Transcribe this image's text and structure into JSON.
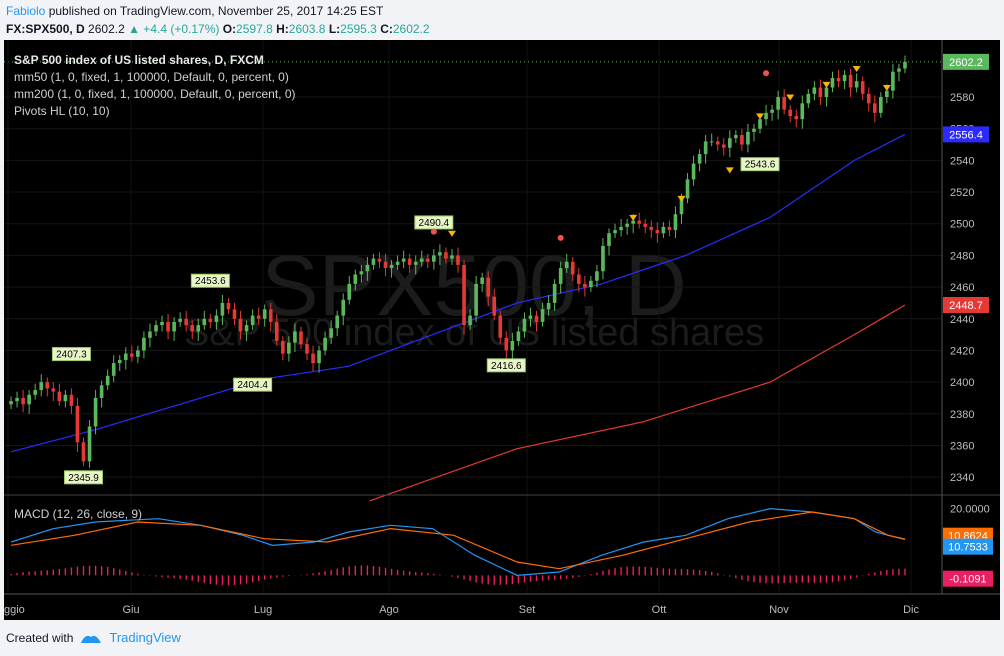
{
  "header": {
    "author": "Fabiolo",
    "published_text": "published on TradingView.com, November 25, 2017 14:25 EST",
    "symbol": "FX:SPX500, D",
    "last": "2602.2",
    "change": "▲ +4.4 (+0.17%)",
    "o_label": "O:",
    "o": "2597.8",
    "h_label": "H:",
    "h": "2603.8",
    "l_label": "L:",
    "l": "2595.3",
    "c_label": "C:",
    "c": "2602.2"
  },
  "legend": {
    "title": "S&P 500 index of US listed shares, D, FXCM",
    "ma50": "mm50 (1, 0, fixed, 1, 100000, Default, 0, percent, 0)",
    "ma200": "mm200 (1, 0, fixed, 1, 100000, Default, 0, percent, 0)",
    "pivots": "Pivots HL (10, 10)"
  },
  "watermark": {
    "symbol": "SPX500, D",
    "name": "S&P 500 index of US listed shares"
  },
  "macd_label": "MACD (12, 26, close, 9)",
  "footer": {
    "created_with": "Created with",
    "brand": "TradingView"
  },
  "colors": {
    "up": "#5cb85c",
    "down": "#e53935",
    "ma50": "#2b2bff",
    "ma200": "#e53935",
    "macd": "#2196f3",
    "signal": "#ff6d00",
    "hist": "#e91e63"
  },
  "chart_data": [
    {
      "type": "candlestick",
      "title": "S&P 500 index of US listed shares, D, FXCM",
      "x_ticks": [
        "ggio",
        "Giu",
        "Lug",
        "Ago",
        "Set",
        "Ott",
        "Nov",
        "Dic"
      ],
      "y_ticks": [
        2340,
        2360,
        2380,
        2400,
        2420,
        2440,
        2460,
        2480,
        2500,
        2520,
        2540,
        2560,
        2580
      ],
      "ylim": [
        2330,
        2616
      ],
      "price_labels": {
        "last": "2602.2",
        "ma50": "2556.4",
        "ma200": "2448.7"
      },
      "pivot_labels": [
        {
          "text": "2407.3",
          "value": 2407.3,
          "type": "high"
        },
        {
          "text": "2345.9",
          "value": 2345.9,
          "type": "low"
        },
        {
          "text": "2453.6",
          "value": 2453.6,
          "type": "high"
        },
        {
          "text": "2404.4",
          "value": 2404.4,
          "type": "low"
        },
        {
          "text": "2490.4",
          "value": 2490.4,
          "type": "high"
        },
        {
          "text": "2416.6",
          "value": 2416.6,
          "type": "low"
        },
        {
          "text": "2543.6",
          "value": 2543.6,
          "type": "low"
        }
      ],
      "series": [
        {
          "name": "mm50",
          "points": [
            [
              0,
              2356
            ],
            [
              20,
              2370
            ],
            [
              40,
              2386
            ],
            [
              60,
              2402
            ],
            [
              80,
              2410
            ],
            [
              100,
              2430
            ],
            [
              120,
              2450
            ],
            [
              140,
              2462
            ],
            [
              160,
              2480
            ],
            [
              180,
              2504
            ],
            [
              200,
              2540
            ],
            [
              212,
              2556.4
            ]
          ]
        },
        {
          "name": "mm200",
          "points": [
            [
              85,
              2325
            ],
            [
              120,
              2358
            ],
            [
              150,
              2375
            ],
            [
              180,
              2400
            ],
            [
              200,
              2430
            ],
            [
              212,
              2448.7
            ]
          ]
        }
      ],
      "close": [
        2388,
        2390,
        2386,
        2392,
        2395,
        2400,
        2396,
        2394,
        2388,
        2392,
        2385,
        2362,
        2350,
        2372,
        2390,
        2398,
        2404,
        2412,
        2414,
        2418,
        2416,
        2420,
        2428,
        2432,
        2436,
        2438,
        2432,
        2438,
        2440,
        2436,
        2432,
        2436,
        2440,
        2438,
        2442,
        2450,
        2446,
        2440,
        2432,
        2436,
        2442,
        2440,
        2446,
        2438,
        2426,
        2418,
        2425,
        2432,
        2424,
        2418,
        2412,
        2420,
        2428,
        2434,
        2442,
        2452,
        2462,
        2468,
        2470,
        2474,
        2478,
        2476,
        2472,
        2474,
        2476,
        2478,
        2474,
        2476,
        2478,
        2476,
        2480,
        2482,
        2478,
        2480,
        2474,
        2436,
        2442,
        2462,
        2466,
        2454,
        2442,
        2428,
        2420,
        2426,
        2432,
        2440,
        2442,
        2438,
        2446,
        2450,
        2462,
        2472,
        2476,
        2468,
        2462,
        2460,
        2464,
        2470,
        2486,
        2494,
        2496,
        2498,
        2500,
        2502,
        2500,
        2498,
        2496,
        2494,
        2498,
        2496,
        2506,
        2516,
        2528,
        2538,
        2544,
        2552,
        2552,
        2550,
        2548,
        2554,
        2556,
        2550,
        2558,
        2560,
        2566,
        2570,
        2572,
        2580,
        2572,
        2568,
        2566,
        2576,
        2582,
        2586,
        2580,
        2586,
        2592,
        2590,
        2594,
        2586,
        2590,
        2582,
        2576,
        2570,
        2580,
        2584,
        2596,
        2598,
        2602.2
      ]
    },
    {
      "type": "line",
      "title": "MACD (12, 26, close, 9)",
      "y_ticks": [
        20.0
      ],
      "ylim": [
        -5,
        22
      ],
      "value_labels": {
        "top": "20.0000",
        "signal": "10.8624",
        "macd": "10.7533",
        "hist": "-0.1091"
      },
      "series": [
        {
          "name": "MACD",
          "points": [
            [
              0,
              10
            ],
            [
              10,
              14
            ],
            [
              20,
              16
            ],
            [
              35,
              17
            ],
            [
              45,
              15
            ],
            [
              55,
              12
            ],
            [
              62,
              9
            ],
            [
              72,
              10
            ],
            [
              80,
              13
            ],
            [
              90,
              15
            ],
            [
              100,
              14
            ],
            [
              110,
              6
            ],
            [
              120,
              0
            ],
            [
              130,
              1
            ],
            [
              140,
              6
            ],
            [
              150,
              10
            ],
            [
              160,
              12
            ],
            [
              170,
              17
            ],
            [
              180,
              20
            ],
            [
              190,
              19
            ],
            [
              200,
              17
            ],
            [
              205,
              13
            ],
            [
              212,
              10.75
            ]
          ]
        },
        {
          "name": "Signal",
          "points": [
            [
              0,
              9
            ],
            [
              15,
              12
            ],
            [
              30,
              16
            ],
            [
              45,
              15
            ],
            [
              60,
              11
            ],
            [
              75,
              10
            ],
            [
              90,
              14
            ],
            [
              105,
              12
            ],
            [
              120,
              4
            ],
            [
              130,
              2
            ],
            [
              145,
              6
            ],
            [
              160,
              11
            ],
            [
              175,
              16
            ],
            [
              190,
              19
            ],
            [
              200,
              17
            ],
            [
              208,
              12
            ],
            [
              212,
              10.86
            ]
          ]
        }
      ]
    }
  ]
}
